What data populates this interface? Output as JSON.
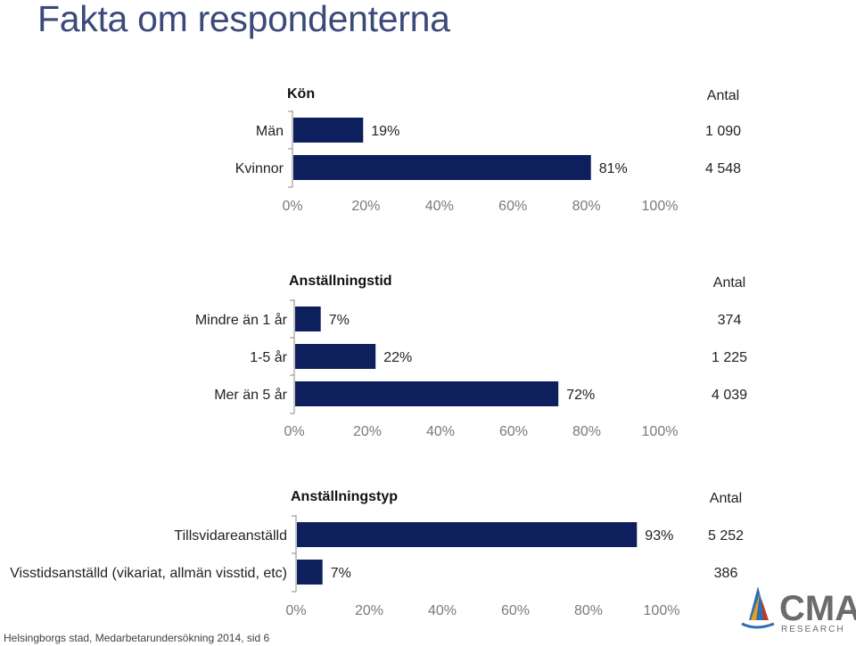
{
  "page": {
    "title": "Fakta om respondenterna",
    "footer": "Helsingborgs stad, Medarbetarundersökning 2014, sid 6"
  },
  "logo": {
    "name": "CMA",
    "tagline": "RESEARCH",
    "sail_colors": [
      "#e8a21a",
      "#c0392b",
      "#2e6fb4"
    ]
  },
  "colors": {
    "bar": "#0d1f5c"
  },
  "chart_data": [
    {
      "type": "bar",
      "orientation": "horizontal",
      "title": "Kön",
      "count_header": "Antal",
      "categories": [
        "Män",
        "Kvinnor"
      ],
      "values": [
        19,
        81
      ],
      "value_labels": [
        "19%",
        "81%"
      ],
      "counts": [
        "1 090",
        "4 548"
      ],
      "xlim": [
        0,
        100
      ],
      "xticks": [
        "0%",
        "20%",
        "40%",
        "60%",
        "80%",
        "100%"
      ]
    },
    {
      "type": "bar",
      "orientation": "horizontal",
      "title": "Anställningstid",
      "count_header": "Antal",
      "categories": [
        "Mindre än 1 år",
        "1-5 år",
        "Mer än 5 år"
      ],
      "values": [
        7,
        22,
        72
      ],
      "value_labels": [
        "7%",
        "22%",
        "72%"
      ],
      "counts": [
        "374",
        "1 225",
        "4 039"
      ],
      "xlim": [
        0,
        100
      ],
      "xticks": [
        "0%",
        "20%",
        "40%",
        "60%",
        "80%",
        "100%"
      ]
    },
    {
      "type": "bar",
      "orientation": "horizontal",
      "title": "Anställningstyp",
      "count_header": "Antal",
      "categories": [
        "Tillsvidareanställd",
        "Visstidsanställd (vikariat, allmän visstid, etc)"
      ],
      "values": [
        93,
        7
      ],
      "value_labels": [
        "93%",
        "7%"
      ],
      "counts": [
        "5 252",
        "386"
      ],
      "xlim": [
        0,
        100
      ],
      "xticks": [
        "0%",
        "20%",
        "40%",
        "60%",
        "80%",
        "100%"
      ]
    }
  ]
}
